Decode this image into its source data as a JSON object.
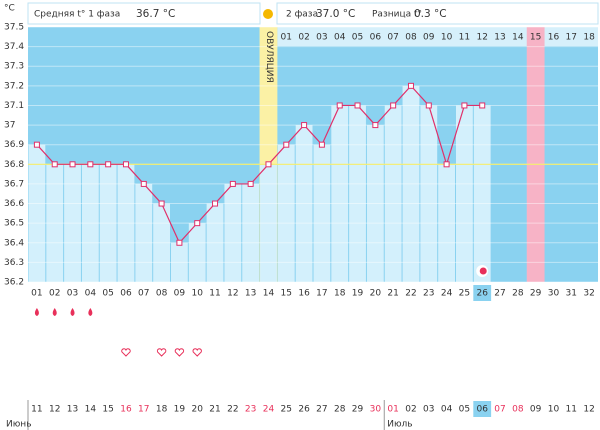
{
  "chart_data": {
    "type": "line",
    "y_label": "°C",
    "summary": [
      {
        "label": "Средняя t° 1 фаза",
        "value": "36.7 °C"
      },
      {
        "label": "2 фаза",
        "value": "37.0 °C"
      },
      {
        "label": "Разница t°",
        "value": "0.3 °C"
      }
    ],
    "categories": [
      "01",
      "02",
      "03",
      "04",
      "05",
      "06",
      "07",
      "08",
      "09",
      "10",
      "11",
      "12",
      "13",
      "14",
      "15",
      "16",
      "17",
      "18",
      "19",
      "20",
      "21",
      "22",
      "23",
      "24",
      "25",
      "26",
      "27",
      "28",
      "29",
      "30",
      "31",
      "32"
    ],
    "series": [
      {
        "name": "Температура",
        "color": "#e0306a",
        "values": [
          36.9,
          36.8,
          36.8,
          36.8,
          36.8,
          36.8,
          36.7,
          36.6,
          36.4,
          36.5,
          36.6,
          36.7,
          36.7,
          36.8,
          36.9,
          37.0,
          36.9,
          37.1,
          37.1,
          37.0,
          37.1,
          37.2,
          37.1,
          36.8,
          37.1,
          37.1,
          null,
          null,
          null,
          null,
          null,
          null
        ]
      }
    ],
    "ylim": [
      36.2,
      37.5
    ],
    "yticks": [
      36.2,
      36.3,
      36.4,
      36.5,
      36.6,
      36.7,
      36.8,
      36.9,
      37,
      37.1,
      37.2,
      37.3,
      37.4,
      37.5
    ],
    "grid": true,
    "coverline": 36.8,
    "ovulation": {
      "label": "ОВУЛЯЦИЯ",
      "day": "14"
    },
    "phase2": {
      "start": "15",
      "days": [
        "01",
        "02",
        "03",
        "04",
        "05",
        "06",
        "07",
        "08",
        "09",
        "10",
        "11",
        "12",
        "13",
        "14",
        "15",
        "16",
        "17",
        "18"
      ]
    },
    "highlight_day": "29",
    "current_day": "26",
    "discharge_days": [
      "01",
      "02",
      "03",
      "04"
    ],
    "intercourse_days": [
      "06",
      "08",
      "09",
      "10"
    ],
    "dates": [
      "11",
      "12",
      "13",
      "14",
      "15",
      "16",
      "17",
      "18",
      "19",
      "20",
      "21",
      "22",
      "23",
      "24",
      "25",
      "26",
      "27",
      "28",
      "29",
      "30",
      "01",
      "02",
      "03",
      "04",
      "05",
      "06",
      "07",
      "08",
      "09",
      "10",
      "11",
      "12"
    ],
    "weekend": [
      false,
      false,
      false,
      false,
      false,
      true,
      true,
      false,
      false,
      false,
      false,
      false,
      true,
      true,
      false,
      false,
      false,
      false,
      false,
      true,
      true,
      false,
      false,
      false,
      false,
      false,
      true,
      true,
      false,
      false,
      false,
      false
    ],
    "months": [
      {
        "name": "Июнь",
        "from": "11"
      },
      {
        "name": "Июль",
        "from": "01"
      }
    ]
  }
}
